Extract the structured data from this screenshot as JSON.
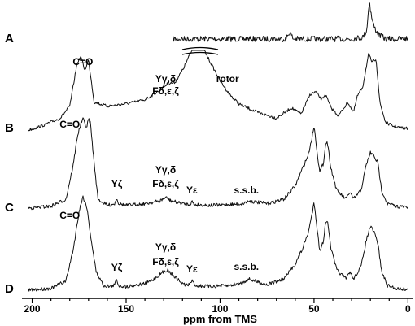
{
  "chart_data": {
    "type": "line",
    "title": "",
    "xlabel": "ppm from TMS",
    "ylabel": "",
    "xlim": [
      205,
      -2
    ],
    "x_reversed": true,
    "xticks": [
      200,
      150,
      100,
      50,
      0
    ],
    "grid": false,
    "legend": "none",
    "series": [
      {
        "name": "A",
        "x": [
          125,
          100,
          75,
          65,
          63,
          61,
          55,
          40,
          30,
          24,
          22,
          21,
          20.5,
          20,
          19,
          18,
          16,
          12,
          0
        ],
        "y": [
          0.05,
          0.05,
          0.05,
          0.05,
          0.25,
          0.05,
          0.05,
          0.05,
          0.05,
          0.1,
          0.3,
          0.9,
          1.2,
          0.9,
          0.6,
          0.4,
          0.2,
          0.05,
          0.05
        ]
      },
      {
        "name": "B",
        "x": [
          202,
          195,
          185,
          180,
          176,
          174,
          172,
          170,
          167,
          160,
          150,
          140,
          132,
          128,
          124,
          120,
          116,
          114,
          112,
          110,
          108,
          104,
          100,
          95,
          90,
          80,
          70,
          62,
          57,
          52,
          49,
          46,
          44,
          41,
          37,
          32,
          29,
          27,
          24,
          21,
          19,
          17,
          15,
          12,
          8,
          4,
          0
        ],
        "y": [
          0.0,
          0.05,
          0.15,
          0.3,
          0.85,
          0.92,
          0.75,
          0.88,
          0.35,
          0.3,
          0.33,
          0.38,
          0.5,
          0.58,
          0.6,
          0.75,
          0.95,
          1.05,
          1.1,
          1.08,
          0.98,
          0.8,
          0.62,
          0.45,
          0.33,
          0.22,
          0.15,
          0.28,
          0.2,
          0.45,
          0.48,
          0.38,
          0.45,
          0.28,
          0.18,
          0.35,
          0.22,
          0.42,
          0.55,
          0.95,
          0.85,
          0.9,
          0.35,
          0.1,
          0.05,
          0.03,
          0.02
        ]
      },
      {
        "name": "C",
        "x": [
          202,
          190,
          182,
          178,
          176,
          174,
          173,
          171,
          170,
          169,
          167,
          165,
          160,
          156,
          155,
          154,
          150,
          140,
          132,
          129,
          126,
          120,
          116,
          115,
          114,
          105,
          95,
          88,
          85,
          75,
          66,
          60,
          56,
          53,
          51,
          50,
          49,
          47,
          45,
          44,
          43,
          41,
          38,
          33,
          31,
          29,
          25,
          22,
          20,
          18,
          16,
          14,
          11,
          6,
          0
        ],
        "y": [
          0.0,
          0.02,
          0.1,
          0.5,
          0.8,
          0.95,
          1.0,
          0.9,
          1.0,
          0.95,
          0.5,
          0.1,
          0.03,
          0.05,
          0.12,
          0.05,
          0.03,
          0.05,
          0.08,
          0.12,
          0.08,
          0.05,
          0.04,
          0.08,
          0.04,
          0.03,
          0.04,
          0.05,
          0.08,
          0.05,
          0.1,
          0.25,
          0.45,
          0.6,
          0.8,
          0.92,
          0.75,
          0.4,
          0.5,
          0.7,
          0.75,
          0.45,
          0.2,
          0.1,
          0.18,
          0.1,
          0.2,
          0.5,
          0.62,
          0.58,
          0.5,
          0.2,
          0.05,
          0.02,
          0.01
        ]
      },
      {
        "name": "D",
        "x": [
          202,
          190,
          182,
          178,
          175,
          173,
          171,
          169,
          166,
          162,
          158,
          156,
          155,
          154,
          150,
          140,
          135,
          130,
          128,
          126,
          120,
          117,
          115,
          113,
          105,
          95,
          88,
          85,
          75,
          66,
          60,
          56,
          53,
          51,
          50,
          49,
          47,
          45,
          44,
          43,
          41,
          38,
          33,
          31,
          29,
          25,
          22,
          20,
          18,
          16,
          14,
          11,
          6,
          0
        ],
        "y": [
          0.0,
          0.02,
          0.1,
          0.45,
          0.85,
          1.0,
          0.9,
          0.6,
          0.2,
          0.05,
          0.04,
          0.06,
          0.12,
          0.05,
          0.04,
          0.07,
          0.12,
          0.2,
          0.22,
          0.18,
          0.07,
          0.05,
          0.1,
          0.05,
          0.04,
          0.05,
          0.08,
          0.12,
          0.06,
          0.12,
          0.28,
          0.45,
          0.62,
          0.82,
          0.95,
          0.78,
          0.42,
          0.52,
          0.72,
          0.75,
          0.45,
          0.22,
          0.12,
          0.2,
          0.12,
          0.25,
          0.55,
          0.68,
          0.62,
          0.5,
          0.2,
          0.05,
          0.02,
          0.01
        ]
      }
    ],
    "annotations": [
      {
        "series": "B",
        "text": "C=O",
        "x": 173
      },
      {
        "series": "B",
        "text": "Yγ,δ",
        "x": 129
      },
      {
        "series": "B",
        "text": "Fδ,ε,ζ",
        "x": 129
      },
      {
        "series": "B",
        "text": "rotor",
        "x": 96
      },
      {
        "series": "C",
        "text": "C=O",
        "x": 180
      },
      {
        "series": "C",
        "text": "Yζ",
        "x": 155
      },
      {
        "series": "C",
        "text": "Yγ,δ",
        "x": 129
      },
      {
        "series": "C",
        "text": "Fδ,ε,ζ",
        "x": 129
      },
      {
        "series": "C",
        "text": "Yε",
        "x": 115
      },
      {
        "series": "C",
        "text": "s.s.b.",
        "x": 86
      },
      {
        "series": "D",
        "text": "C=O",
        "x": 180
      },
      {
        "series": "D",
        "text": "Yζ",
        "x": 155
      },
      {
        "series": "D",
        "text": "Yγ,δ",
        "x": 129
      },
      {
        "series": "D",
        "text": "Fδ,ε,ζ",
        "x": 129
      },
      {
        "series": "D",
        "text": "Yε",
        "x": 115
      },
      {
        "series": "D",
        "text": "s.s.b.",
        "x": 86
      }
    ]
  }
}
